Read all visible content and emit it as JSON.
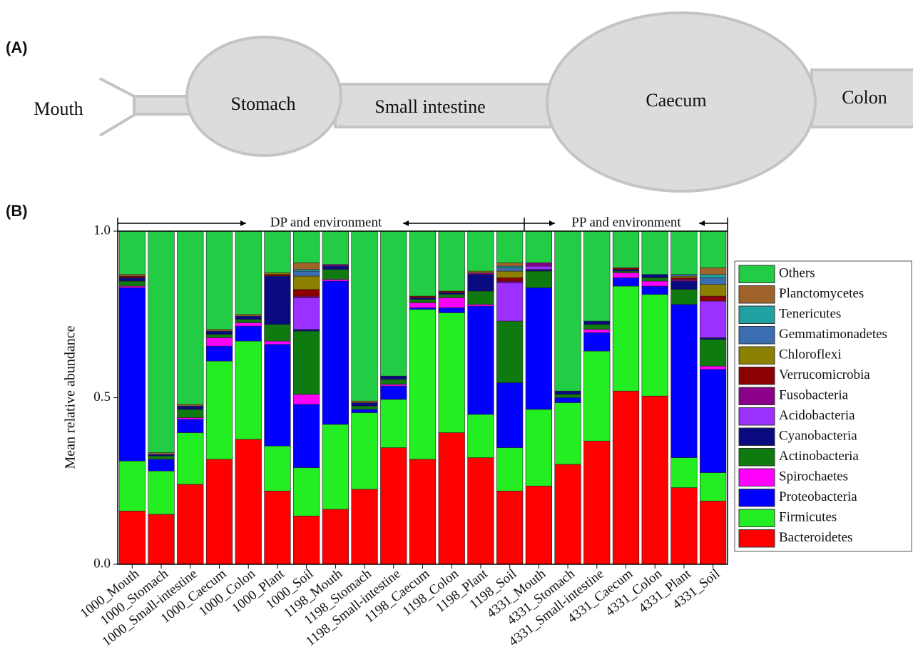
{
  "panel_a": {
    "label": "(A)",
    "organs": [
      "Mouth",
      "Stomach",
      "Small intestine",
      "Caecum",
      "Colon"
    ]
  },
  "panel_b": {
    "label": "(B)"
  },
  "chart_data": {
    "type": "stacked_bar",
    "y_label": "Mean relative abundance",
    "annotations": [
      "DP and environment",
      "PP and environment"
    ],
    "categories": [
      "1000_Mouth",
      "1000_Stomach",
      "1000_Small-intestine",
      "1000_Caecum",
      "1000_Colon",
      "1000_Plant",
      "1000_Soil",
      "1198_Mouth",
      "1198_Stomach",
      "1198_Small-intestine",
      "1198_Caecum",
      "1198_Colon",
      "1198_Plant",
      "1198_Soil",
      "4331_Mouth",
      "4331_Stomach",
      "4331_Small-intestine",
      "4331_Caecum",
      "4331_Colon",
      "4331_Plant",
      "4331_Soil"
    ],
    "ylim": [
      0,
      1
    ],
    "yticks": [
      {
        "value": 0,
        "label": "0.0"
      },
      {
        "value": 0.5,
        "label": "0.5"
      },
      {
        "value": 1,
        "label": "1.0"
      }
    ],
    "series": [
      {
        "name": "Bacteroidetes",
        "color": "#ff0000",
        "values": [
          0.16,
          0.15,
          0.24,
          0.315,
          0.375,
          0.22,
          0.145,
          0.165,
          0.225,
          0.35,
          0.315,
          0.395,
          0.32,
          0.22,
          0.235,
          0.3,
          0.37,
          0.52,
          0.505,
          0.23,
          0.19
        ]
      },
      {
        "name": "Firmicutes",
        "color": "#22ee22",
        "values": [
          0.15,
          0.13,
          0.155,
          0.295,
          0.295,
          0.135,
          0.145,
          0.255,
          0.23,
          0.145,
          0.45,
          0.36,
          0.13,
          0.13,
          0.23,
          0.185,
          0.27,
          0.315,
          0.305,
          0.09,
          0.085
        ]
      },
      {
        "name": "Proteobacteria",
        "color": "#0000ff",
        "values": [
          0.52,
          0.035,
          0.04,
          0.045,
          0.045,
          0.305,
          0.19,
          0.43,
          0.01,
          0.04,
          0.005,
          0.015,
          0.325,
          0.195,
          0.365,
          0.015,
          0.055,
          0.025,
          0.025,
          0.46,
          0.31
        ]
      },
      {
        "name": "Spirochaetes",
        "color": "#ff00ff",
        "values": [
          0.005,
          0,
          0.005,
          0.025,
          0.01,
          0.01,
          0.03,
          0.005,
          0,
          0.005,
          0.015,
          0.03,
          0.005,
          0,
          0,
          0,
          0.01,
          0.015,
          0.015,
          0,
          0.01
        ]
      },
      {
        "name": "Actinobacteria",
        "color": "#0f7a0f",
        "values": [
          0.015,
          0.01,
          0.025,
          0.01,
          0.01,
          0.05,
          0.19,
          0.03,
          0.01,
          0.015,
          0.01,
          0.01,
          0.04,
          0.185,
          0.05,
          0.01,
          0.015,
          0.005,
          0.01,
          0.045,
          0.08
        ]
      },
      {
        "name": "Cyanobacteria",
        "color": "#0a0a80",
        "values": [
          0.01,
          0.005,
          0.01,
          0.01,
          0.01,
          0.145,
          0.005,
          0.01,
          0.01,
          0.01,
          0.005,
          0.005,
          0.05,
          0,
          0.005,
          0.01,
          0.01,
          0.005,
          0.01,
          0.025,
          0.005
        ]
      },
      {
        "name": "Acidobacteria",
        "color": "#9b30ff",
        "values": [
          0,
          0,
          0,
          0,
          0,
          0,
          0.095,
          0,
          0,
          0,
          0,
          0,
          0,
          0.115,
          0.01,
          0,
          0,
          0,
          0,
          0,
          0.11
        ]
      },
      {
        "name": "Fusobacteria",
        "color": "#8b008b",
        "values": [
          0,
          0,
          0,
          0,
          0,
          0,
          0.005,
          0.005,
          0,
          0,
          0,
          0,
          0.005,
          0.005,
          0.01,
          0,
          0,
          0,
          0,
          0.005,
          0
        ]
      },
      {
        "name": "Verrucomicrobia",
        "color": "#8b0000",
        "values": [
          0.005,
          0,
          0,
          0,
          0,
          0.005,
          0.02,
          0,
          0,
          0,
          0.005,
          0.005,
          0,
          0.01,
          0,
          0,
          0,
          0.005,
          0,
          0.005,
          0.015
        ]
      },
      {
        "name": "Chloroflexi",
        "color": "#8b8000",
        "values": [
          0,
          0,
          0,
          0,
          0,
          0.005,
          0.04,
          0,
          0,
          0,
          0,
          0,
          0.005,
          0.02,
          0,
          0,
          0,
          0,
          0,
          0.005,
          0.035
        ]
      },
      {
        "name": "Gemmatimonadetes",
        "color": "#3a6eb0",
        "values": [
          0,
          0,
          0,
          0,
          0,
          0,
          0.015,
          0,
          0,
          0,
          0,
          0,
          0,
          0.01,
          0,
          0,
          0,
          0,
          0,
          0.005,
          0.02
        ]
      },
      {
        "name": "Tenericutes",
        "color": "#20a0a0",
        "values": [
          0,
          0,
          0,
          0,
          0,
          0,
          0.005,
          0,
          0,
          0,
          0,
          0,
          0,
          0.005,
          0,
          0,
          0,
          0,
          0,
          0,
          0.01
        ]
      },
      {
        "name": "Planctomycetes",
        "color": "#a0642a",
        "values": [
          0.005,
          0.005,
          0.005,
          0.005,
          0.005,
          0,
          0.02,
          0,
          0.005,
          0,
          0,
          0,
          0,
          0.01,
          0,
          0,
          0,
          0,
          0,
          0,
          0.02
        ]
      },
      {
        "name": "Others",
        "color": "#22cc44",
        "values": [
          0.13,
          0.665,
          0.52,
          0.295,
          0.25,
          0.125,
          0.095,
          0.1,
          0.51,
          0.435,
          0.195,
          0.18,
          0.12,
          0.095,
          0.095,
          0.48,
          0.27,
          0.11,
          0.13,
          0.13,
          0.11
        ]
      }
    ]
  }
}
